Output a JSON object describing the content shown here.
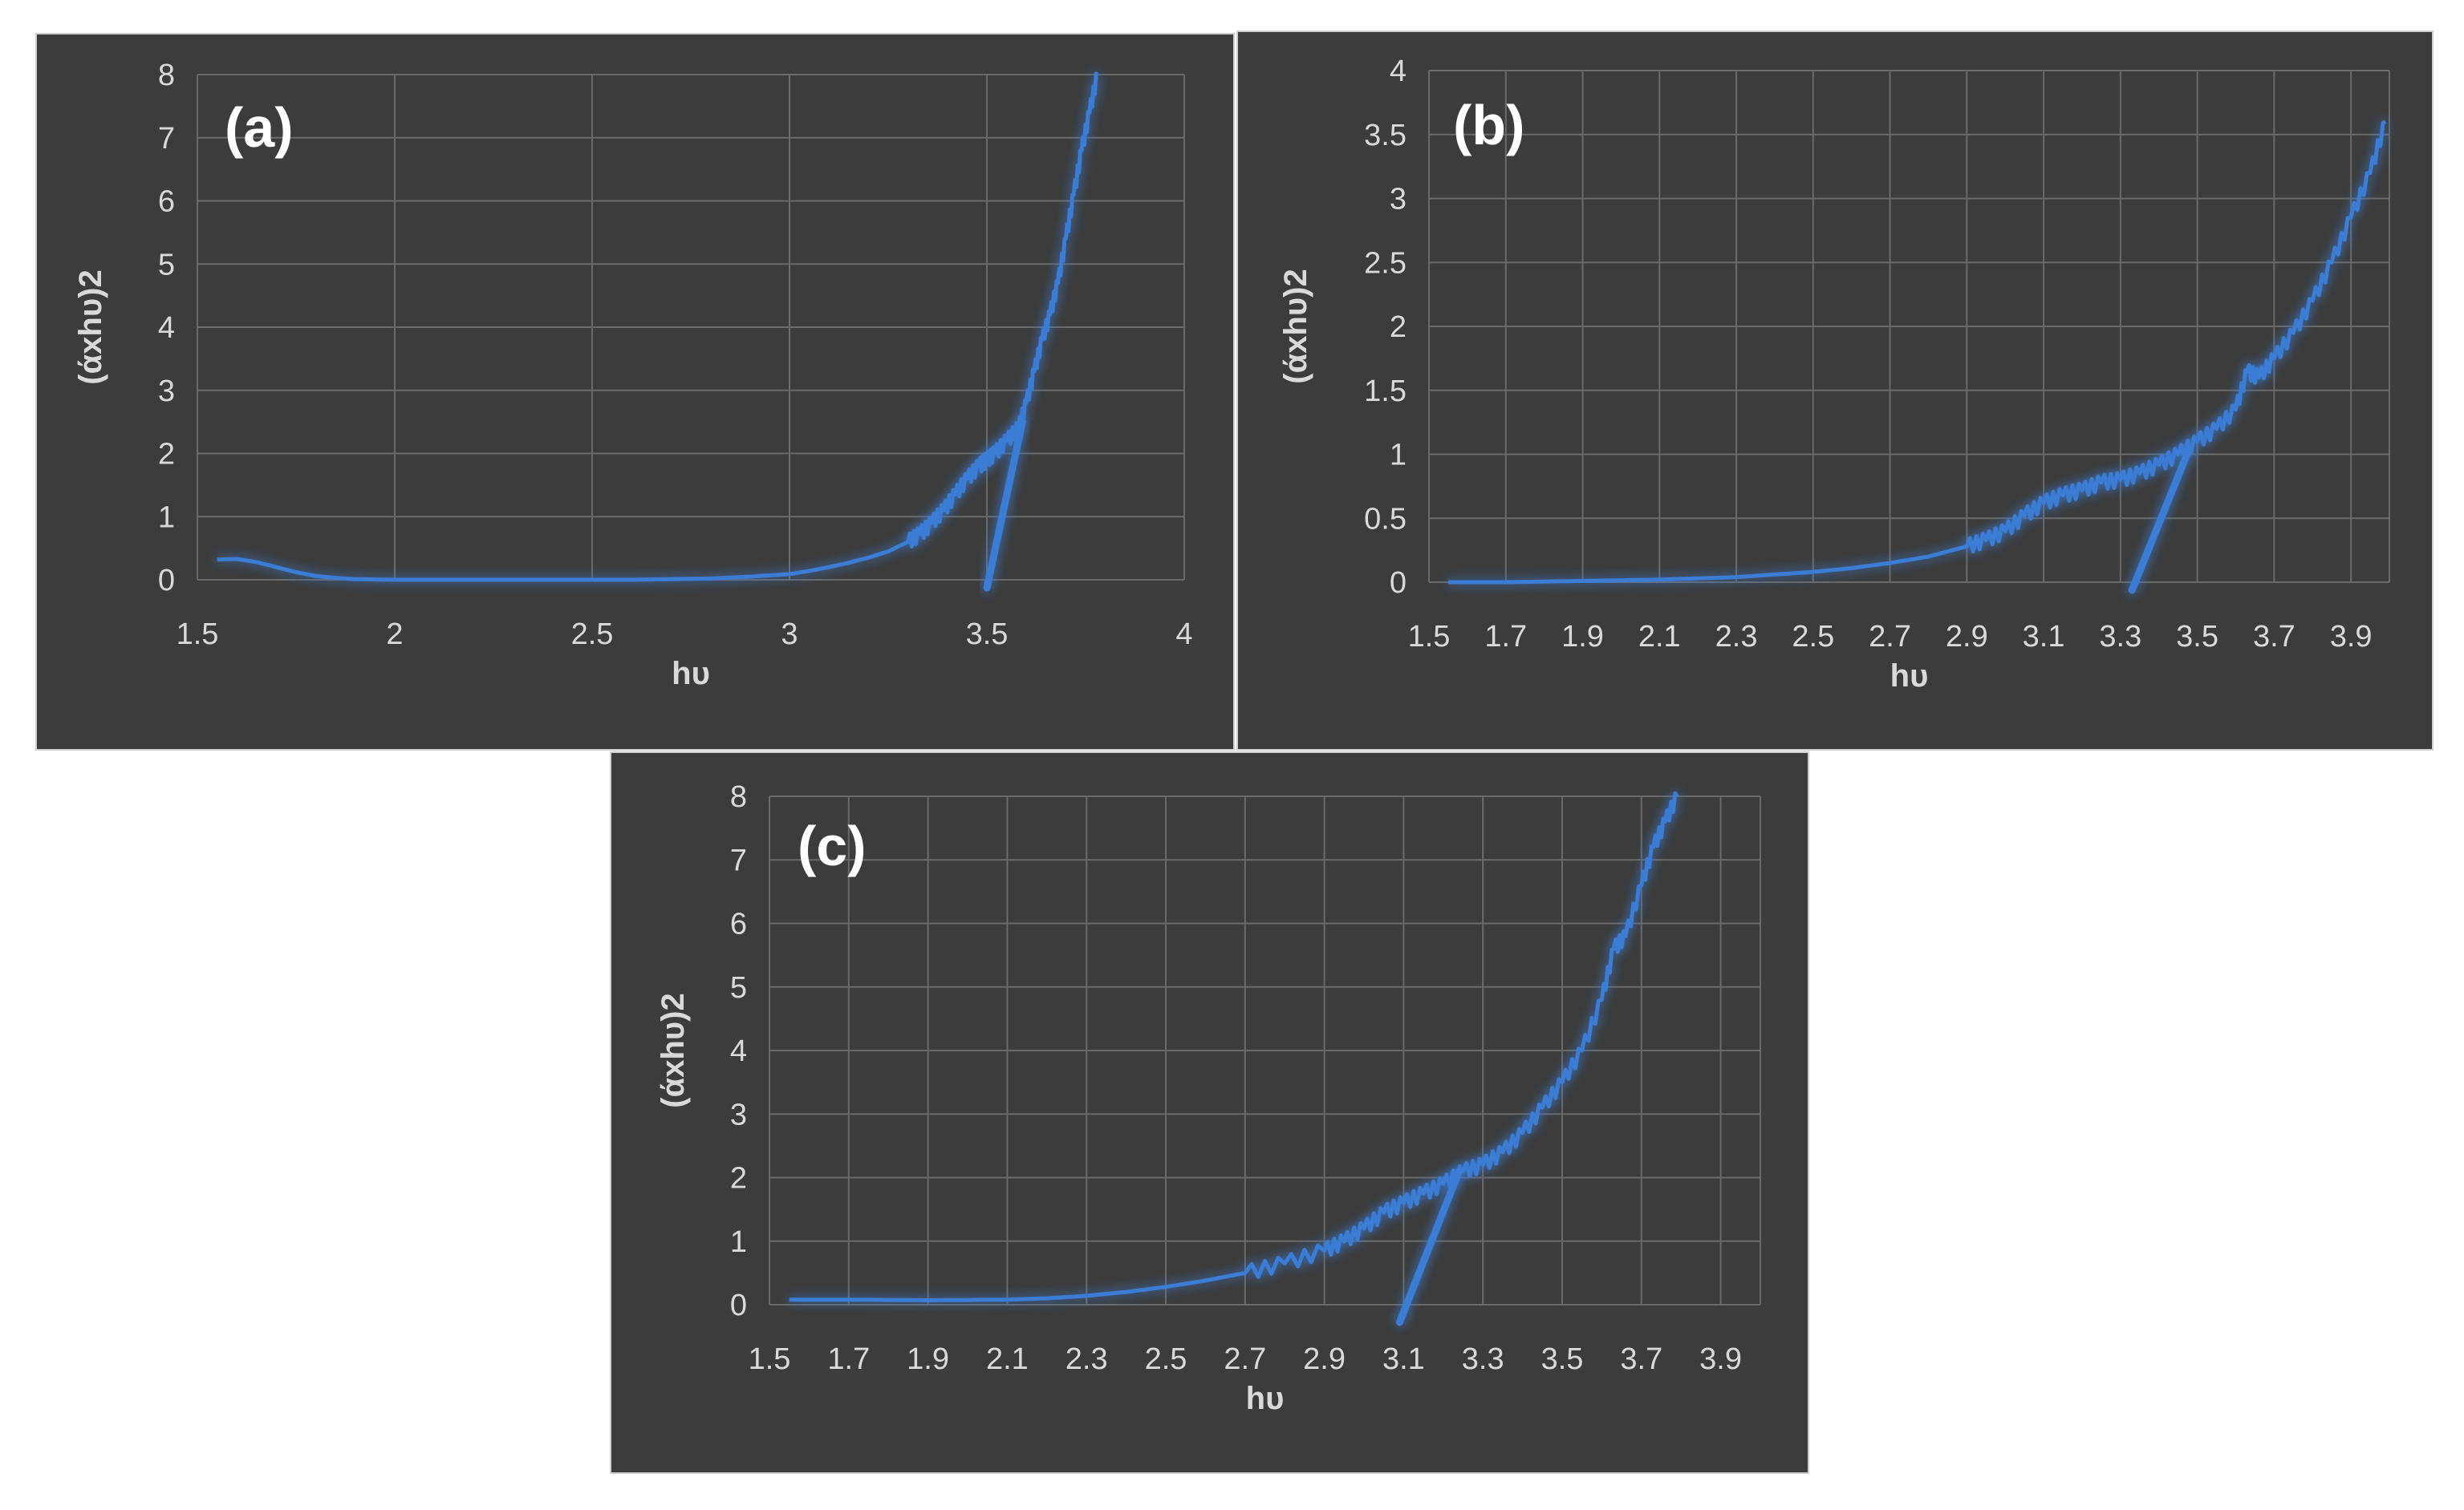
{
  "chart_data": [
    {
      "type": "line",
      "panel_label": "(a)",
      "xlabel": "hυ",
      "ylabel": "(άxhυ)2",
      "xlim": [
        1.5,
        4
      ],
      "ylim": [
        0,
        8
      ],
      "xticks": [
        1.5,
        2,
        2.5,
        3,
        3.5,
        4
      ],
      "yticks": [
        0,
        1,
        2,
        3,
        4,
        5,
        6,
        7,
        8
      ],
      "xtick_labels": [
        "1.5",
        "2",
        "2.5",
        "3",
        "3.5",
        "4"
      ],
      "ytick_labels": [
        "0",
        "1",
        "2",
        "3",
        "4",
        "5",
        "6",
        "7",
        "8"
      ],
      "grid": true,
      "series_color": "#3a7bd5",
      "series": [
        {
          "x": [
            1.55,
            1.6,
            1.65,
            1.7,
            1.75,
            1.8,
            1.85,
            1.9,
            2.0,
            2.2,
            2.4,
            2.6,
            2.8,
            2.9,
            3.0,
            3.05,
            3.1,
            3.15,
            3.2,
            3.25,
            3.3,
            3.33,
            3.36,
            3.39,
            3.42,
            3.45,
            3.48,
            3.5,
            3.52,
            3.55,
            3.58,
            3.6,
            3.62,
            3.64,
            3.66,
            3.68,
            3.7,
            3.72,
            3.74,
            3.76,
            3.78
          ],
          "y": [
            0.32,
            0.33,
            0.28,
            0.2,
            0.12,
            0.06,
            0.03,
            0.01,
            0.0,
            0.0,
            0.0,
            0.0,
            0.02,
            0.05,
            0.09,
            0.14,
            0.2,
            0.27,
            0.35,
            0.45,
            0.6,
            0.72,
            0.9,
            1.1,
            1.35,
            1.6,
            1.8,
            1.9,
            2.0,
            2.2,
            2.4,
            2.8,
            3.3,
            3.8,
            4.2,
            4.7,
            5.4,
            6.1,
            6.8,
            7.4,
            8.0
          ]
        }
      ],
      "tangent": {
        "x": [
          3.5,
          3.59
        ],
        "y": [
          0,
          2.5
        ]
      }
    },
    {
      "type": "line",
      "panel_label": "(b)",
      "xlabel": "hυ",
      "ylabel": "(άxhυ)2",
      "xlim": [
        1.5,
        4.0
      ],
      "ylim": [
        0,
        4
      ],
      "xticks": [
        1.5,
        1.7,
        1.9,
        2.1,
        2.3,
        2.5,
        2.7,
        2.9,
        3.1,
        3.3,
        3.5,
        3.7,
        3.9
      ],
      "yticks": [
        0,
        0.5,
        1,
        1.5,
        2,
        2.5,
        3,
        3.5,
        4
      ],
      "xtick_labels": [
        "1.5",
        "1.7",
        "1.9",
        "2.1",
        "2.3",
        "2.5",
        "2.7",
        "2.9",
        "3.1",
        "3.3",
        "3.5",
        "3.7",
        "3.9"
      ],
      "ytick_labels": [
        "0",
        "0.5",
        "1",
        "1.5",
        "2",
        "2.5",
        "3",
        "3.5",
        "4"
      ],
      "grid": true,
      "series_color": "#3a7bd5",
      "series": [
        {
          "x": [
            1.55,
            1.7,
            1.9,
            2.1,
            2.3,
            2.5,
            2.6,
            2.7,
            2.8,
            2.9,
            2.95,
            3.0,
            3.05,
            3.1,
            3.15,
            3.2,
            3.25,
            3.3,
            3.35,
            3.4,
            3.45,
            3.5,
            3.55,
            3.6,
            3.63,
            3.66,
            3.7,
            3.75,
            3.8,
            3.85,
            3.9,
            3.95,
            3.99
          ],
          "y": [
            0.0,
            0.0,
            0.01,
            0.02,
            0.04,
            0.08,
            0.11,
            0.15,
            0.2,
            0.28,
            0.33,
            0.4,
            0.52,
            0.62,
            0.68,
            0.72,
            0.78,
            0.8,
            0.85,
            0.92,
            1.0,
            1.1,
            1.2,
            1.35,
            1.65,
            1.6,
            1.75,
            1.95,
            2.2,
            2.5,
            2.85,
            3.2,
            3.6
          ]
        }
      ],
      "tangent": {
        "x": [
          3.33,
          3.48
        ],
        "y": [
          0,
          1.05
        ]
      }
    },
    {
      "type": "line",
      "panel_label": "(c)",
      "xlabel": "hυ",
      "ylabel": "(άxhυ)2",
      "xlim": [
        1.5,
        4.0
      ],
      "ylim": [
        0,
        8
      ],
      "xticks": [
        1.5,
        1.7,
        1.9,
        2.1,
        2.3,
        2.5,
        2.7,
        2.9,
        3.1,
        3.3,
        3.5,
        3.7,
        3.9
      ],
      "yticks": [
        0,
        1,
        2,
        3,
        4,
        5,
        6,
        7,
        8
      ],
      "xtick_labels": [
        "1.5",
        "1.7",
        "1.9",
        "2.1",
        "2.3",
        "2.5",
        "2.7",
        "2.9",
        "3.1",
        "3.3",
        "3.5",
        "3.7",
        "3.9"
      ],
      "ytick_labels": [
        "0",
        "1",
        "2",
        "3",
        "4",
        "5",
        "6",
        "7",
        "8"
      ],
      "grid": true,
      "series_color": "#3a7bd5",
      "series": [
        {
          "x": [
            1.55,
            1.7,
            1.9,
            2.1,
            2.2,
            2.3,
            2.4,
            2.5,
            2.6,
            2.7,
            2.8,
            2.9,
            2.95,
            3.0,
            3.05,
            3.1,
            3.15,
            3.2,
            3.25,
            3.3,
            3.35,
            3.4,
            3.45,
            3.5,
            3.55,
            3.6,
            3.63,
            3.66,
            3.7,
            3.73,
            3.76,
            3.79
          ],
          "y": [
            0.08,
            0.08,
            0.07,
            0.08,
            0.1,
            0.14,
            0.2,
            0.28,
            0.38,
            0.5,
            0.65,
            0.85,
            1.0,
            1.2,
            1.45,
            1.6,
            1.75,
            1.9,
            2.1,
            2.2,
            2.4,
            2.7,
            3.1,
            3.5,
            4.0,
            4.8,
            5.6,
            5.8,
            6.6,
            7.2,
            7.6,
            8.0
          ]
        }
      ],
      "tangent": {
        "x": [
          3.09,
          3.24
        ],
        "y": [
          -0.15,
          2.1
        ]
      }
    }
  ]
}
